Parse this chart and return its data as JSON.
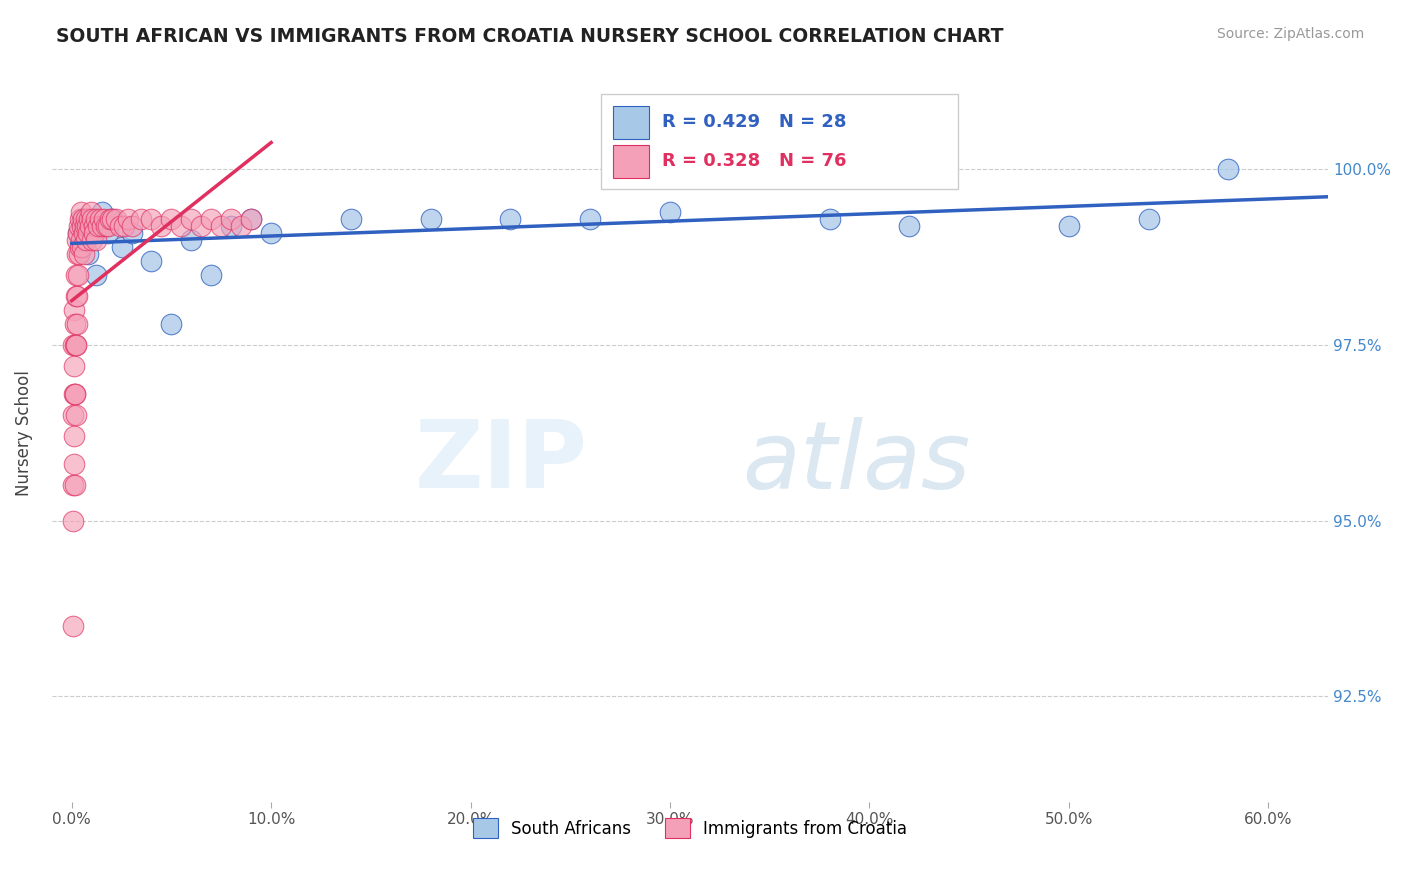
{
  "title": "SOUTH AFRICAN VS IMMIGRANTS FROM CROATIA NURSERY SCHOOL CORRELATION CHART",
  "source": "Source: ZipAtlas.com",
  "xlabel_ticks": [
    "0.0%",
    "10.0%",
    "20.0%",
    "30.0%",
    "40.0%",
    "50.0%",
    "60.0%"
  ],
  "xlabel_vals": [
    0,
    10,
    20,
    30,
    40,
    50,
    60
  ],
  "ylabel": "Nursery School",
  "ylabel_ticks": [
    "92.5%",
    "95.0%",
    "97.5%",
    "100.0%"
  ],
  "ylabel_vals": [
    92.5,
    95.0,
    97.5,
    100.0
  ],
  "ylim": [
    91.0,
    101.5
  ],
  "xlim": [
    -1,
    63
  ],
  "blue_R": 0.429,
  "blue_N": 28,
  "pink_R": 0.328,
  "pink_N": 76,
  "blue_color": "#a8c8e8",
  "pink_color": "#f4a0b8",
  "trendline_blue": "#3060c0",
  "trendline_pink": "#e03060",
  "legend_label_blue": "South Africans",
  "legend_label_pink": "Immigrants from Croatia",
  "blue_x": [
    0.3,
    0.5,
    0.7,
    0.8,
    1.0,
    1.2,
    1.5,
    1.8,
    2.0,
    2.5,
    3.0,
    4.0,
    5.0,
    6.0,
    7.0,
    8.0,
    9.0,
    10.0,
    14.0,
    18.0,
    22.0,
    26.0,
    30.0,
    38.0,
    42.0,
    50.0,
    54.0,
    58.0
  ],
  "blue_y": [
    99.1,
    99.3,
    99.0,
    98.8,
    99.2,
    98.5,
    99.4,
    99.1,
    99.3,
    98.9,
    99.1,
    98.7,
    97.8,
    99.0,
    98.5,
    99.2,
    99.3,
    99.1,
    99.3,
    99.3,
    99.3,
    99.3,
    99.4,
    99.3,
    99.2,
    99.2,
    99.3,
    100.0
  ],
  "pink_x": [
    0.05,
    0.05,
    0.08,
    0.08,
    0.08,
    0.1,
    0.1,
    0.1,
    0.12,
    0.12,
    0.15,
    0.15,
    0.15,
    0.18,
    0.18,
    0.2,
    0.2,
    0.2,
    0.22,
    0.22,
    0.25,
    0.25,
    0.28,
    0.28,
    0.3,
    0.3,
    0.35,
    0.35,
    0.4,
    0.4,
    0.45,
    0.45,
    0.5,
    0.5,
    0.55,
    0.6,
    0.6,
    0.65,
    0.7,
    0.7,
    0.75,
    0.8,
    0.85,
    0.9,
    0.95,
    1.0,
    1.0,
    1.1,
    1.1,
    1.2,
    1.2,
    1.3,
    1.4,
    1.5,
    1.6,
    1.7,
    1.8,
    1.9,
    2.0,
    2.2,
    2.4,
    2.6,
    2.8,
    3.0,
    3.5,
    4.0,
    4.5,
    5.0,
    5.5,
    6.0,
    6.5,
    7.0,
    7.5,
    8.0,
    8.5,
    9.0
  ],
  "pink_y": [
    93.5,
    95.0,
    96.5,
    97.5,
    95.5,
    98.0,
    96.8,
    95.8,
    97.2,
    96.2,
    97.8,
    96.8,
    95.5,
    97.5,
    96.8,
    98.2,
    97.5,
    96.5,
    98.5,
    97.5,
    98.8,
    97.8,
    99.0,
    98.2,
    99.1,
    98.5,
    99.2,
    98.8,
    99.3,
    98.9,
    99.4,
    99.0,
    99.2,
    98.9,
    99.3,
    99.1,
    98.8,
    99.2,
    99.3,
    99.0,
    99.2,
    99.1,
    99.3,
    99.2,
    99.4,
    99.3,
    99.0,
    99.2,
    99.1,
    99.3,
    99.0,
    99.2,
    99.3,
    99.2,
    99.3,
    99.2,
    99.2,
    99.3,
    99.3,
    99.3,
    99.2,
    99.2,
    99.3,
    99.2,
    99.3,
    99.3,
    99.2,
    99.3,
    99.2,
    99.3,
    99.2,
    99.3,
    99.2,
    99.3,
    99.2,
    99.3
  ]
}
